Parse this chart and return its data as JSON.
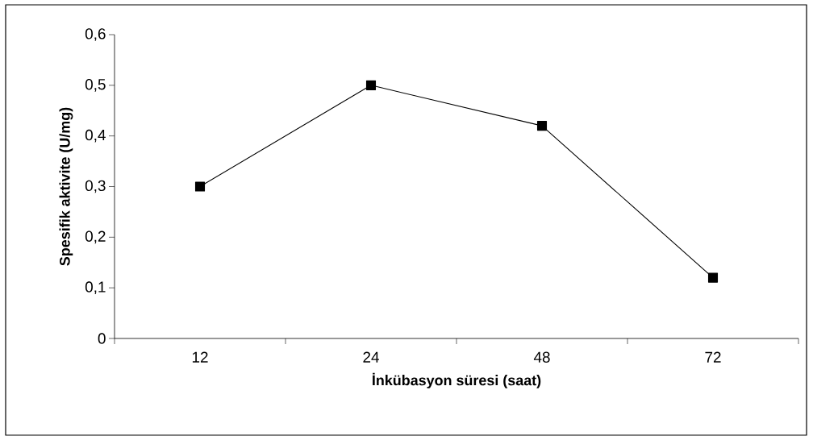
{
  "chart_data": {
    "type": "line",
    "xlabel": "İnkübasyon süresi (saat)",
    "ylabel": "Spesifik aktivite (U/mg)",
    "categories": [
      "12",
      "24",
      "48",
      "72"
    ],
    "values": [
      0.3,
      0.5,
      0.42,
      0.12
    ],
    "color": "#000000",
    "marker": "square",
    "line_style": "solid",
    "ylim": [
      0,
      0.6
    ],
    "yticks": [
      0,
      {
        "value": 0.1,
        "label": "0,1"
      },
      {
        "value": 0.2,
        "label": "0,2"
      },
      {
        "value": 0.3,
        "label": "0,3"
      },
      {
        "value": 0.4,
        "label": "0,4"
      },
      {
        "value": 0.5,
        "label": "0,5"
      },
      {
        "value": 0.6,
        "label": "0,6"
      }
    ]
  }
}
